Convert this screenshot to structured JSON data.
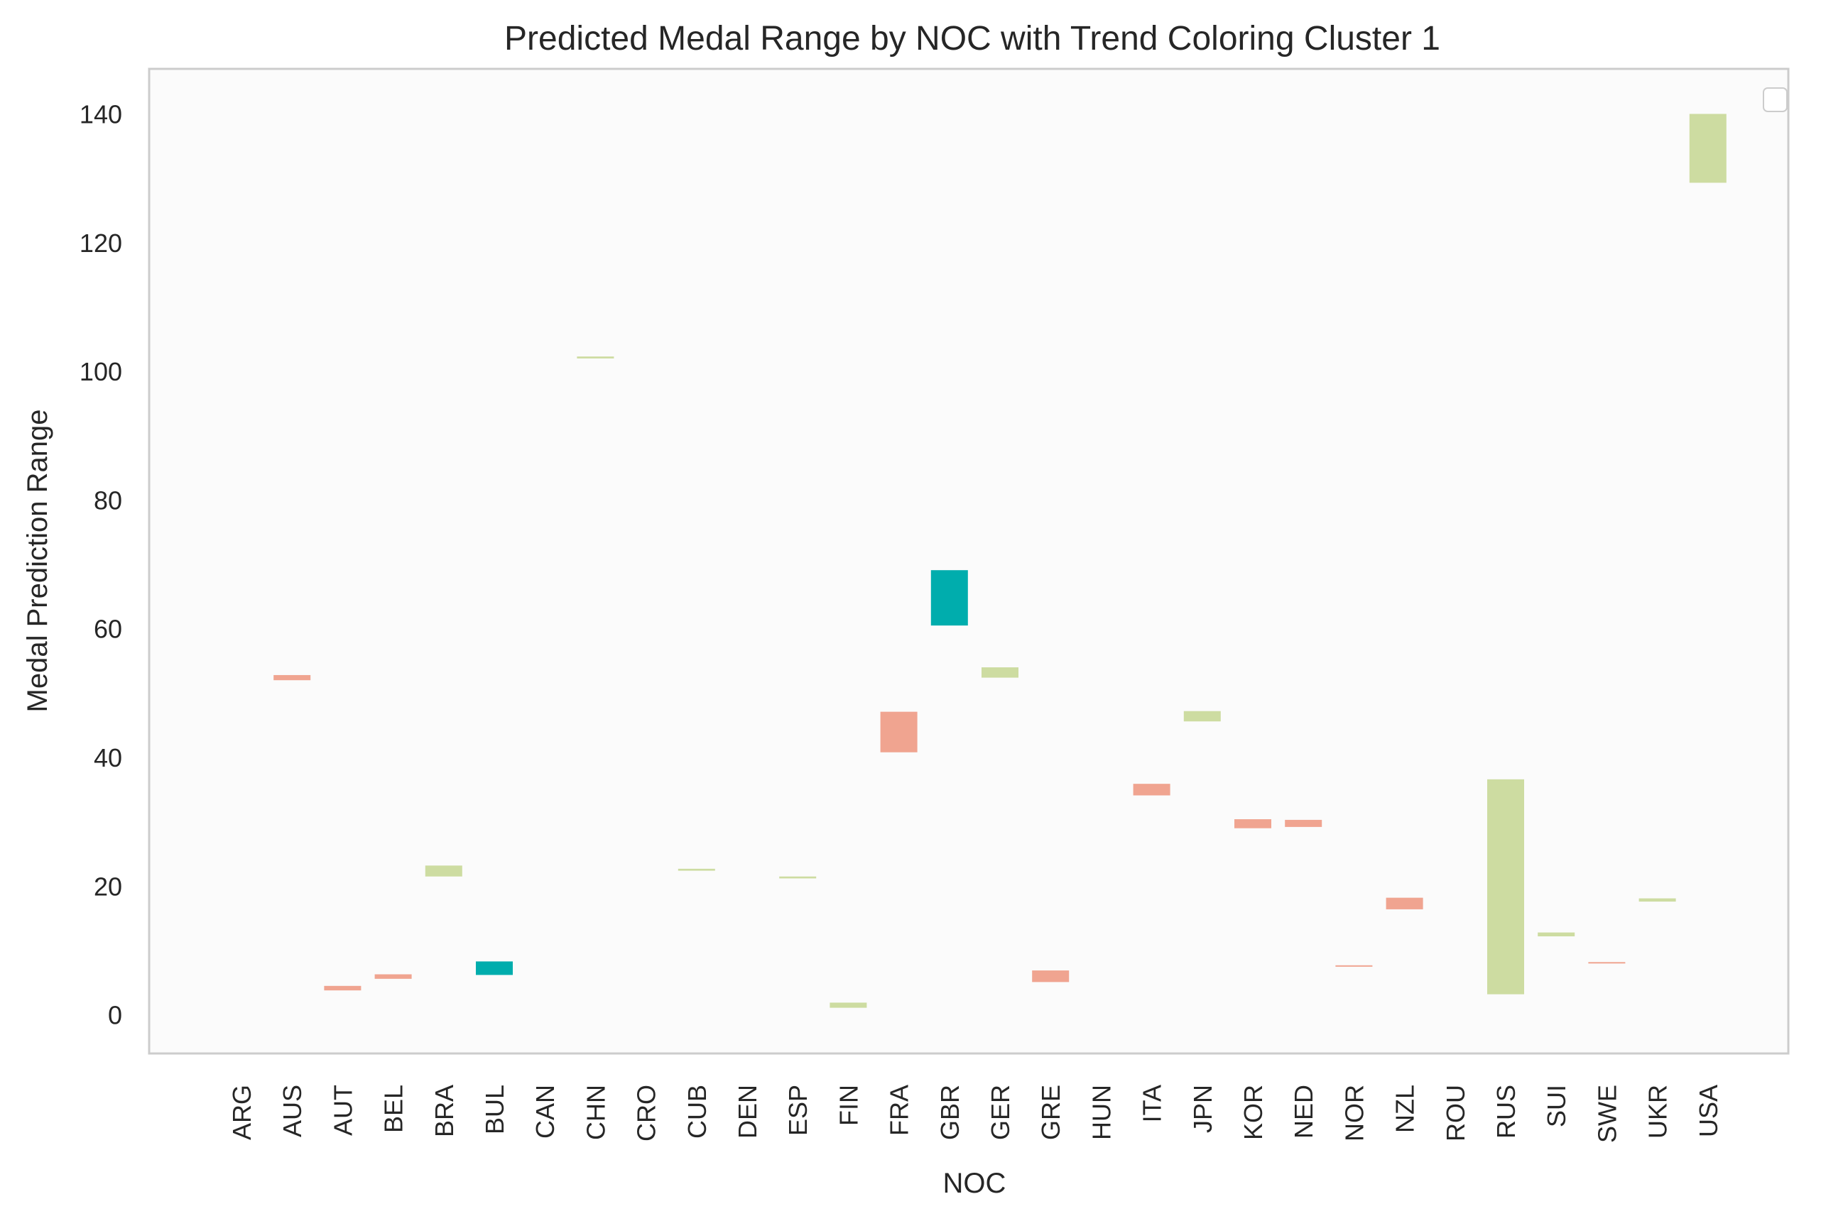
{
  "chart_data": {
    "type": "bar",
    "subtype": "floating-range",
    "title": "Predicted Medal Range by NOC with Trend Coloring Cluster 1",
    "xlabel": "NOC",
    "ylabel": "Medal Prediction Range",
    "ylim": [
      -6,
      147
    ],
    "yticks": [
      0,
      20,
      40,
      60,
      80,
      100,
      120,
      140
    ],
    "grid": false,
    "legend": "top-right (empty)",
    "colors": {
      "up": "#cddca1",
      "down": "#f0a490",
      "stable": "#00adad",
      "plot_bg": "#fbfbfb",
      "frame": "#cccccc"
    },
    "categories": [
      "ARG",
      "AUS",
      "AUT",
      "BEL",
      "BRA",
      "BUL",
      "CAN",
      "CHN",
      "CRO",
      "CUB",
      "DEN",
      "ESP",
      "FIN",
      "FRA",
      "GBR",
      "GER",
      "GRE",
      "HUN",
      "ITA",
      "JPN",
      "KOR",
      "NED",
      "NOR",
      "NZL",
      "ROU",
      "RUS",
      "SUI",
      "SWE",
      "UKR",
      "USA"
    ],
    "bars": [
      {
        "noc": "ARG",
        "low": null,
        "high": null,
        "trend": null
      },
      {
        "noc": "AUS",
        "low": 52.0,
        "high": 52.8,
        "trend": "down"
      },
      {
        "noc": "AUT",
        "low": 3.8,
        "high": 4.5,
        "trend": "down"
      },
      {
        "noc": "BEL",
        "low": 5.6,
        "high": 6.3,
        "trend": "down"
      },
      {
        "noc": "BRA",
        "low": 21.5,
        "high": 23.2,
        "trend": "up"
      },
      {
        "noc": "BUL",
        "low": 6.2,
        "high": 8.3,
        "trend": "stable"
      },
      {
        "noc": "CAN",
        "low": null,
        "high": null,
        "trend": null
      },
      {
        "noc": "CHN",
        "low": 102.0,
        "high": 102.3,
        "trend": "up"
      },
      {
        "noc": "CRO",
        "low": null,
        "high": null,
        "trend": null
      },
      {
        "noc": "CUB",
        "low": 22.4,
        "high": 22.7,
        "trend": "up"
      },
      {
        "noc": "DEN",
        "low": null,
        "high": null,
        "trend": null
      },
      {
        "noc": "ESP",
        "low": 21.2,
        "high": 21.5,
        "trend": "up"
      },
      {
        "noc": "FIN",
        "low": 1.1,
        "high": 1.9,
        "trend": "up"
      },
      {
        "noc": "FRA",
        "low": 40.8,
        "high": 47.1,
        "trend": "down"
      },
      {
        "noc": "GBR",
        "low": 60.5,
        "high": 69.1,
        "trend": "stable"
      },
      {
        "noc": "GER",
        "low": 52.4,
        "high": 54.0,
        "trend": "up"
      },
      {
        "noc": "GRE",
        "low": 5.1,
        "high": 6.9,
        "trend": "down"
      },
      {
        "noc": "HUN",
        "low": null,
        "high": null,
        "trend": null
      },
      {
        "noc": "ITA",
        "low": 34.1,
        "high": 35.9,
        "trend": "down"
      },
      {
        "noc": "JPN",
        "low": 45.6,
        "high": 47.2,
        "trend": "up"
      },
      {
        "noc": "KOR",
        "low": 29.0,
        "high": 30.4,
        "trend": "down"
      },
      {
        "noc": "NED",
        "low": 29.2,
        "high": 30.3,
        "trend": "down"
      },
      {
        "noc": "NOR",
        "low": 7.5,
        "high": 7.7,
        "trend": "down"
      },
      {
        "noc": "NZL",
        "low": 16.4,
        "high": 18.2,
        "trend": "down"
      },
      {
        "noc": "ROU",
        "low": null,
        "high": null,
        "trend": null
      },
      {
        "noc": "RUS",
        "low": 3.2,
        "high": 36.6,
        "trend": "up"
      },
      {
        "noc": "SUI",
        "low": 12.2,
        "high": 12.8,
        "trend": "up"
      },
      {
        "noc": "SWE",
        "low": 8.0,
        "high": 8.2,
        "trend": "down"
      },
      {
        "noc": "UKR",
        "low": 17.6,
        "high": 18.1,
        "trend": "up"
      },
      {
        "noc": "USA",
        "low": 129.3,
        "high": 140.0,
        "trend": "up"
      }
    ]
  }
}
